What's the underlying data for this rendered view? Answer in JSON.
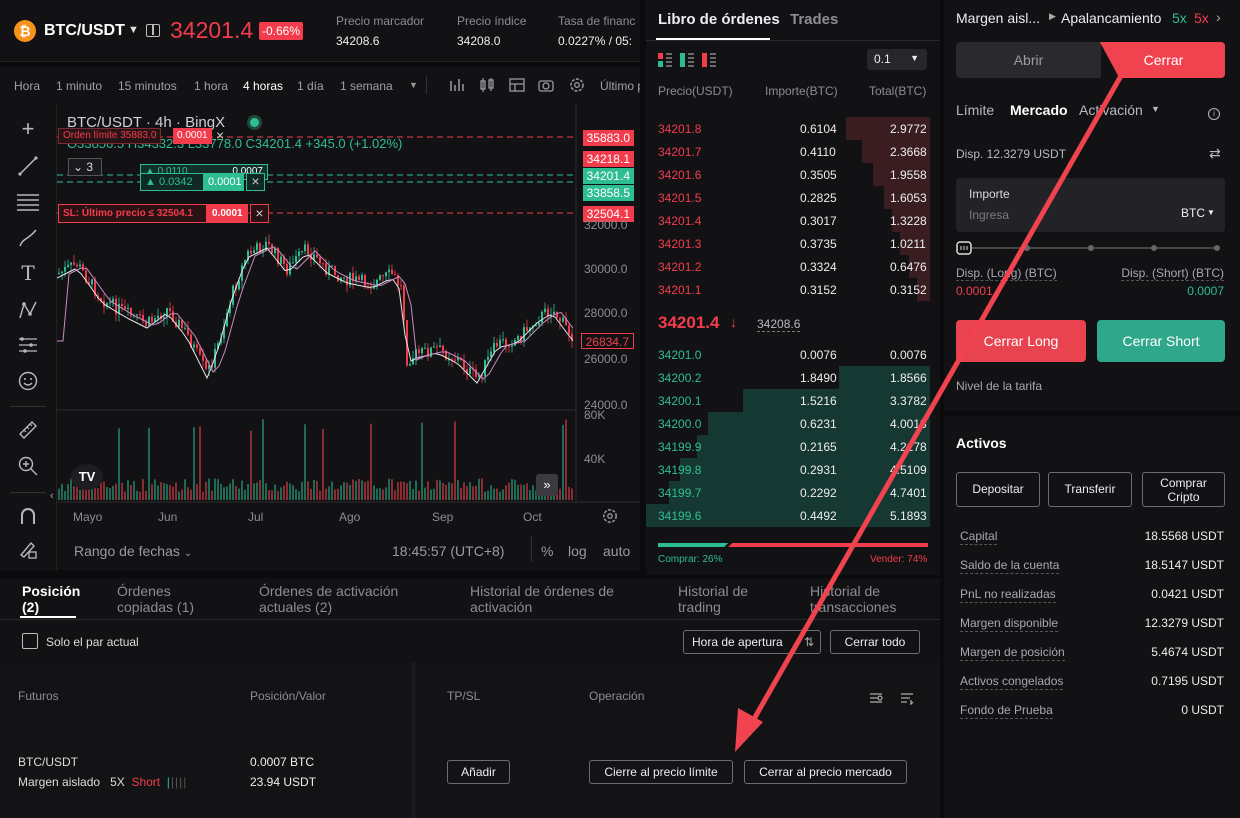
{
  "header": {
    "coin_icon_letter": "₿",
    "pair": "BTC/USDT",
    "last_price": "34201.4",
    "change_pct": "-0.66%",
    "stats": [
      {
        "label": "Precio marcador",
        "value": "34208.6"
      },
      {
        "label": "Precio índice",
        "value": "34208.0"
      },
      {
        "label": "Tasa de financ",
        "value": "0.0227% / 05:"
      }
    ]
  },
  "chart_toolbar": {
    "timeframes": [
      "Hora",
      "1 minuto",
      "15 minutos",
      "1 hora",
      "4 horas",
      "1 día",
      "1 semana"
    ],
    "active_timeframe": "4 horas",
    "last_label": "Último p"
  },
  "chart": {
    "title": "BTC/USDT · 4h · BingX",
    "ohlc": "O33856.5 H34332.3 L33778.0 C34201.4 +345.0 (+1.02%)",
    "order_limit_label": "Orden límite 35883.0",
    "order_limit_qty": "0.0001",
    "collapse_count": "3",
    "position_label_1": "▲ 0.0110",
    "position_qty_1": "0.0007",
    "position_label_2": "▲ 0.0342",
    "position_qty_2": "0.0001",
    "sl_label": "SL: Último precio ≤ 32504.1",
    "sl_qty": "0.0001",
    "price_tags": [
      "35883.0",
      "34218.1",
      "34201.4",
      "33858.5",
      "32504.1",
      "26834.7"
    ],
    "y_axis": [
      "32000.0",
      "30000.0",
      "28000.0",
      "26000.0",
      "24000.0"
    ],
    "volume_axis": [
      "80K",
      "40K"
    ],
    "x_axis": [
      "Mayo",
      "Jun",
      "Jul",
      "Ago",
      "Sep",
      "Oct"
    ],
    "date_range": "Rango de fechas",
    "time": "18:45:57 (UTC+8)",
    "pct": "%",
    "log": "log",
    "auto": "auto"
  },
  "orderbook": {
    "tabs": [
      "Libro de órdenes",
      "Trades"
    ],
    "precision": "0.1",
    "columns": [
      "Precio(USDT)",
      "Importe(BTC)",
      "Total(BTC)"
    ],
    "asks": [
      {
        "price": "34201.8",
        "qty": "0.6104",
        "total": "2.9772",
        "depth": 0.53
      },
      {
        "price": "34201.7",
        "qty": "0.4110",
        "total": "2.3668",
        "depth": 0.43
      },
      {
        "price": "34201.6",
        "qty": "0.3505",
        "total": "1.9558",
        "depth": 0.36
      },
      {
        "price": "34201.5",
        "qty": "0.2825",
        "total": "1.6053",
        "depth": 0.29
      },
      {
        "price": "34201.4",
        "qty": "0.3017",
        "total": "1.3228",
        "depth": 0.24
      },
      {
        "price": "34201.3",
        "qty": "0.3735",
        "total": "1.0211",
        "depth": 0.19
      },
      {
        "price": "34201.2",
        "qty": "0.3324",
        "total": "0.6476",
        "depth": 0.13
      },
      {
        "price": "34201.1",
        "qty": "0.3152",
        "total": "0.3152",
        "depth": 0.08
      }
    ],
    "mid_price": "34201.4",
    "mid_arrow": "↓",
    "mark_price": "34208.6",
    "bids": [
      {
        "price": "34201.0",
        "qty": "0.0076",
        "total": "0.0076",
        "depth": 0.0
      },
      {
        "price": "34200.2",
        "qty": "1.8490",
        "total": "1.8566",
        "depth": 0.32
      },
      {
        "price": "34200.1",
        "qty": "1.5216",
        "total": "3.3782",
        "depth": 0.66
      },
      {
        "price": "34200.0",
        "qty": "0.6231",
        "total": "4.0013",
        "depth": 0.78
      },
      {
        "price": "34199.9",
        "qty": "0.2165",
        "total": "4.2178",
        "depth": 0.82
      },
      {
        "price": "34199.8",
        "qty": "0.2931",
        "total": "4.5109",
        "depth": 0.88
      },
      {
        "price": "34199.7",
        "qty": "0.2292",
        "total": "4.7401",
        "depth": 0.92
      },
      {
        "price": "34199.6",
        "qty": "0.4492",
        "total": "5.1893",
        "depth": 1.0
      }
    ],
    "buy_label": "Comprar: 26%",
    "sell_label": "Vender: 74%",
    "buy_pct": 26
  },
  "trade_panel": {
    "margin_mode": "Margen aisl...",
    "leverage_label": "Apalancamiento",
    "lev_long": "5x",
    "lev_short": "5x",
    "tab_open": "Abrir",
    "tab_close": "Cerrar",
    "order_types": [
      "Límite",
      "Mercado",
      "Activación"
    ],
    "active_order_type": "Mercado",
    "available": "Disp. 12.3279 USDT",
    "amount_label": "Importe",
    "amount_placeholder": "Ingresa",
    "amount_unit": "BTC",
    "disp_long_label": "Disp. (Long) (BTC)",
    "disp_long_value": "0.0001",
    "disp_short_label": "Disp. (Short) (BTC)",
    "disp_short_value": "0.0007",
    "close_long": "Cerrar Long",
    "close_short": "Cerrar Short",
    "fee_level": "Nivel de la tarifa",
    "assets_title": "Activos",
    "btn_deposit": "Depositar",
    "btn_transfer": "Transferir",
    "btn_buy_crypto_1": "Comprar",
    "btn_buy_crypto_2": "Cripto",
    "assets": [
      {
        "label": "Capital",
        "value": "18.5568 USDT"
      },
      {
        "label": "Saldo de la cuenta",
        "value": "18.5147 USDT"
      },
      {
        "label": "PnL no realizadas",
        "value": "0.0421 USDT"
      },
      {
        "label": "Margen disponible",
        "value": "12.3279 USDT"
      },
      {
        "label": "Margen de posición",
        "value": "5.4674 USDT"
      },
      {
        "label": "Activos congelados",
        "value": "0.7195 USDT"
      },
      {
        "label": "Fondo de Prueba",
        "value": "0 USDT"
      }
    ]
  },
  "bottom": {
    "tabs": [
      {
        "line1": "Posición",
        "line2": "(2)"
      },
      {
        "line1": "Órdenes",
        "line2": "copiadas (1)"
      },
      {
        "line1": "Órdenes de activación",
        "line2": "actuales (2)"
      },
      {
        "line1": "Historial de órdenes de",
        "line2": "activación"
      },
      {
        "line1": "Historial de",
        "line2": "trading"
      },
      {
        "line1": "Historial de",
        "line2": "transacciones"
      }
    ],
    "only_current": "Solo el par actual",
    "sort_open_time": "Hora de apertura",
    "close_all": "Cerrar todo",
    "cols": [
      "Futuros",
      "Posición/Valor",
      "TP/SL",
      "Operación"
    ],
    "row": {
      "symbol": "BTC/USDT",
      "margin": "Margen aislado",
      "lev": "5X",
      "side": "Short",
      "size": "0.0007 BTC",
      "value": "23.94 USDT",
      "add": "Añadir",
      "close_limit": "Cierre al precio límite",
      "close_market": "Cerrar al precio mercado"
    }
  },
  "colors": {
    "green": "#2ebd93",
    "red": "#f23c4c",
    "annotation": "#f0434f"
  }
}
